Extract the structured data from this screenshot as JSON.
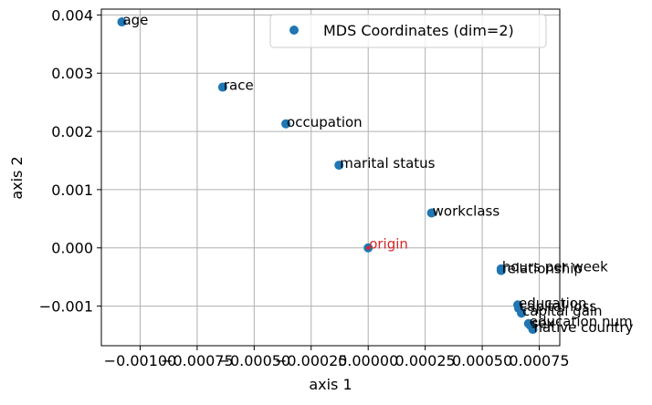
{
  "chart_data": {
    "type": "scatter",
    "xlabel": "axis 1",
    "ylabel": "axis 2",
    "xlim": [
      -0.00117,
      0.00084
    ],
    "ylim": [
      -0.00168,
      0.0041
    ],
    "grid": true,
    "legend": {
      "label": "MDS Coordinates (dim=2)",
      "placement": "top-right"
    },
    "x_ticks": [
      {
        "value": -0.001,
        "label": "−0.00100"
      },
      {
        "value": -0.00075,
        "label": "−0.00075"
      },
      {
        "value": -0.0005,
        "label": "−0.00050"
      },
      {
        "value": -0.00025,
        "label": "−0.00025"
      },
      {
        "value": 0.0,
        "label": "0.00000"
      },
      {
        "value": 0.00025,
        "label": "0.00025"
      },
      {
        "value": 0.0005,
        "label": "0.00050"
      },
      {
        "value": 0.00075,
        "label": "0.00075"
      }
    ],
    "y_ticks": [
      {
        "value": -0.001,
        "label": "−0.001"
      },
      {
        "value": 0.0,
        "label": "0.000"
      },
      {
        "value": 0.001,
        "label": "0.001"
      },
      {
        "value": 0.002,
        "label": "0.002"
      },
      {
        "value": 0.003,
        "label": "0.003"
      },
      {
        "value": 0.004,
        "label": "0.004"
      }
    ],
    "colors": {
      "points": "#1f77b4",
      "origin": "#d62728"
    },
    "points": [
      {
        "label": "age",
        "x": -0.00108,
        "y": 0.00388
      },
      {
        "label": "race",
        "x": -0.000638,
        "y": 0.00276
      },
      {
        "label": "occupation",
        "x": -0.000361,
        "y": 0.00213
      },
      {
        "label": "marital status",
        "x": -0.000128,
        "y": 0.00142
      },
      {
        "label": "workclass",
        "x": 0.000278,
        "y": 0.0006
      },
      {
        "label": "hours per week",
        "x": 0.000583,
        "y": -0.00036
      },
      {
        "label": "relationship",
        "x": 0.000583,
        "y": -0.00039
      },
      {
        "label": "education",
        "x": 0.000656,
        "y": -0.00098
      },
      {
        "label": "capital loss",
        "x": 0.00066,
        "y": -0.00104
      },
      {
        "label": "capital gain",
        "x": 0.000672,
        "y": -0.00112
      },
      {
        "label": "education num",
        "x": 0.000703,
        "y": -0.0013
      },
      {
        "label": "sex",
        "x": 0.000711,
        "y": -0.00133
      },
      {
        "label": "native country",
        "x": 0.000722,
        "y": -0.0014
      }
    ],
    "origin": {
      "label": "origin",
      "x": 0.0,
      "y": 0.0
    }
  }
}
